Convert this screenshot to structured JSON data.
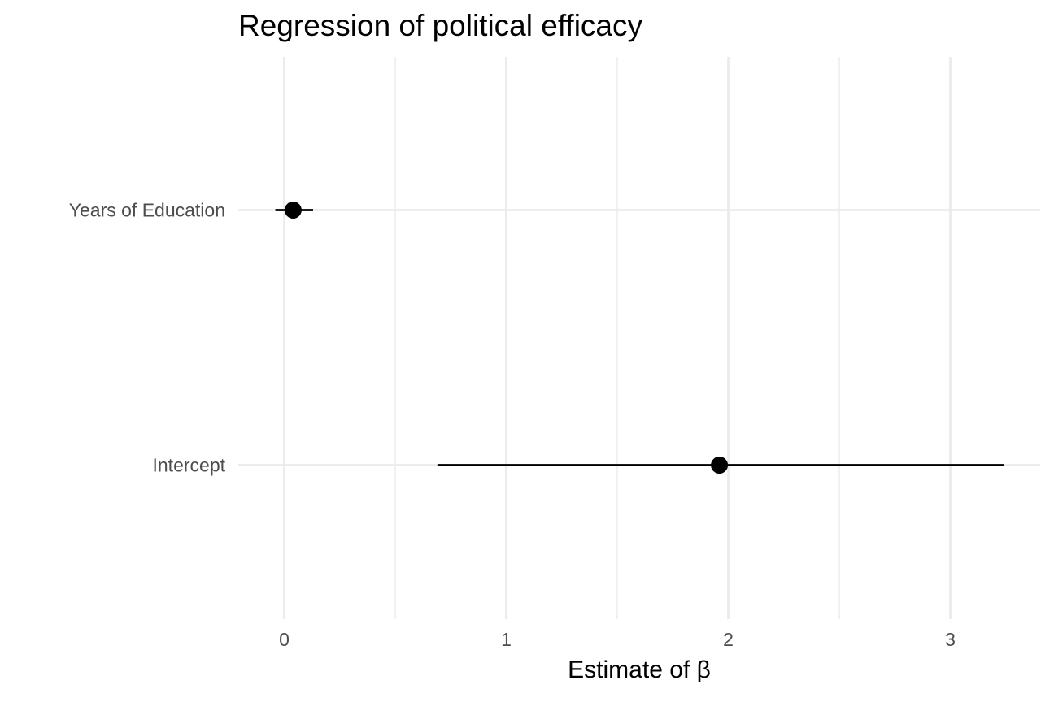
{
  "chart_data": {
    "type": "dot-and-whisker",
    "title": "Regression of political efficacy",
    "xlabel": "Estimate of β",
    "ylabel": "",
    "xlim": [
      -0.2,
      3.4
    ],
    "x_ticks": [
      0,
      1,
      2,
      3
    ],
    "x_tick_labels": [
      "0",
      "1",
      "2",
      "3"
    ],
    "x_minor_ticks": [
      0.5,
      1.5,
      2.5
    ],
    "grid": true,
    "legend": "none",
    "point_color": "#000000",
    "grid_color": "#ebebeb",
    "terms": [
      {
        "term": "Years of Education",
        "estimate": 0.04,
        "conf_low": -0.04,
        "conf_high": 0.13
      },
      {
        "term": "Intercept",
        "estimate": 1.96,
        "conf_low": 0.69,
        "conf_high": 3.24
      }
    ]
  }
}
